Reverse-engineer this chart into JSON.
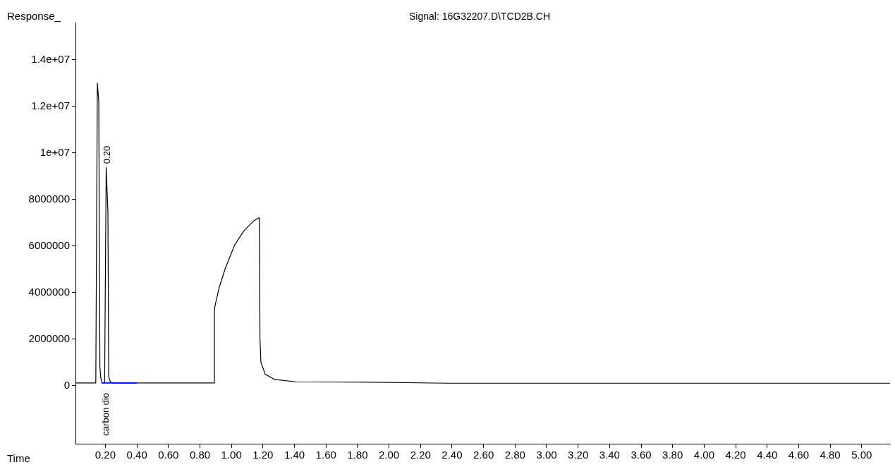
{
  "chart_data": {
    "type": "line",
    "title": "Signal: 16G32207.D\\TCD2B.CH",
    "xlabel": "Time",
    "ylabel": "Response_",
    "xlim": [
      0.01,
      5.18
    ],
    "ylim": [
      -2500000,
      15600000
    ],
    "xticks": [
      {
        "value": 0.2,
        "label": "0.20"
      },
      {
        "value": 0.4,
        "label": "0.40"
      },
      {
        "value": 0.6,
        "label": "0.60"
      },
      {
        "value": 0.8,
        "label": "0.80"
      },
      {
        "value": 1.0,
        "label": "1.00"
      },
      {
        "value": 1.2,
        "label": "1.20"
      },
      {
        "value": 1.4,
        "label": "1.40"
      },
      {
        "value": 1.6,
        "label": "1.60"
      },
      {
        "value": 1.8,
        "label": "1.80"
      },
      {
        "value": 2.0,
        "label": "2.00"
      },
      {
        "value": 2.2,
        "label": "2.20"
      },
      {
        "value": 2.4,
        "label": "2.40"
      },
      {
        "value": 2.6,
        "label": "2.60"
      },
      {
        "value": 2.8,
        "label": "2.80"
      },
      {
        "value": 3.0,
        "label": "3.00"
      },
      {
        "value": 3.2,
        "label": "3.20"
      },
      {
        "value": 3.4,
        "label": "3.40"
      },
      {
        "value": 3.6,
        "label": "3.60"
      },
      {
        "value": 3.8,
        "label": "3.80"
      },
      {
        "value": 4.0,
        "label": "4.00"
      },
      {
        "value": 4.2,
        "label": "4.20"
      },
      {
        "value": 4.4,
        "label": "4.40"
      },
      {
        "value": 4.6,
        "label": "4.60"
      },
      {
        "value": 4.8,
        "label": "4.80"
      },
      {
        "value": 5.0,
        "label": "5.00"
      }
    ],
    "yticks": [
      0,
      2000000,
      4000000,
      6000000,
      8000000,
      {
        "value": 10000000,
        "label": "1e+07"
      },
      {
        "value": 12000000,
        "label": "1.2e+07"
      },
      {
        "value": 14000000,
        "label": "1.4e+07"
      }
    ],
    "marker": "none",
    "line_style": "solid",
    "series": [
      {
        "color": "#000000",
        "x": [
          0.01,
          0.139,
          0.149,
          0.158,
          0.165,
          0.171,
          0.18,
          0.195,
          0.205,
          0.216,
          0.221,
          0.232,
          0.25,
          0.892,
          0.892,
          0.902,
          0.923,
          0.961,
          1.021,
          1.08,
          1.14,
          1.177,
          1.181,
          1.187,
          1.214,
          1.274,
          1.408,
          1.824,
          2.378,
          5.18
        ],
        "values": [
          110000,
          110000,
          13000000,
          12200000,
          820000,
          300000,
          130000,
          110000,
          9380000,
          7440000,
          380000,
          150000,
          110000,
          110000,
          3300000,
          3620000,
          4230000,
          5040000,
          6050000,
          6660000,
          7070000,
          7220000,
          2000000,
          1000000,
          490000,
          260000,
          160000,
          150000,
          100000,
          100000
        ]
      },
      {
        "color": "#0000ff",
        "x": [
          0.175,
          0.4
        ],
        "values": [
          110000,
          110000
        ]
      }
    ],
    "annotations": [
      {
        "text": "0.20",
        "x": 0.205,
        "y": 9380000
      },
      {
        "text": "carbon dio",
        "x": 0.2,
        "y": 110000
      }
    ]
  }
}
